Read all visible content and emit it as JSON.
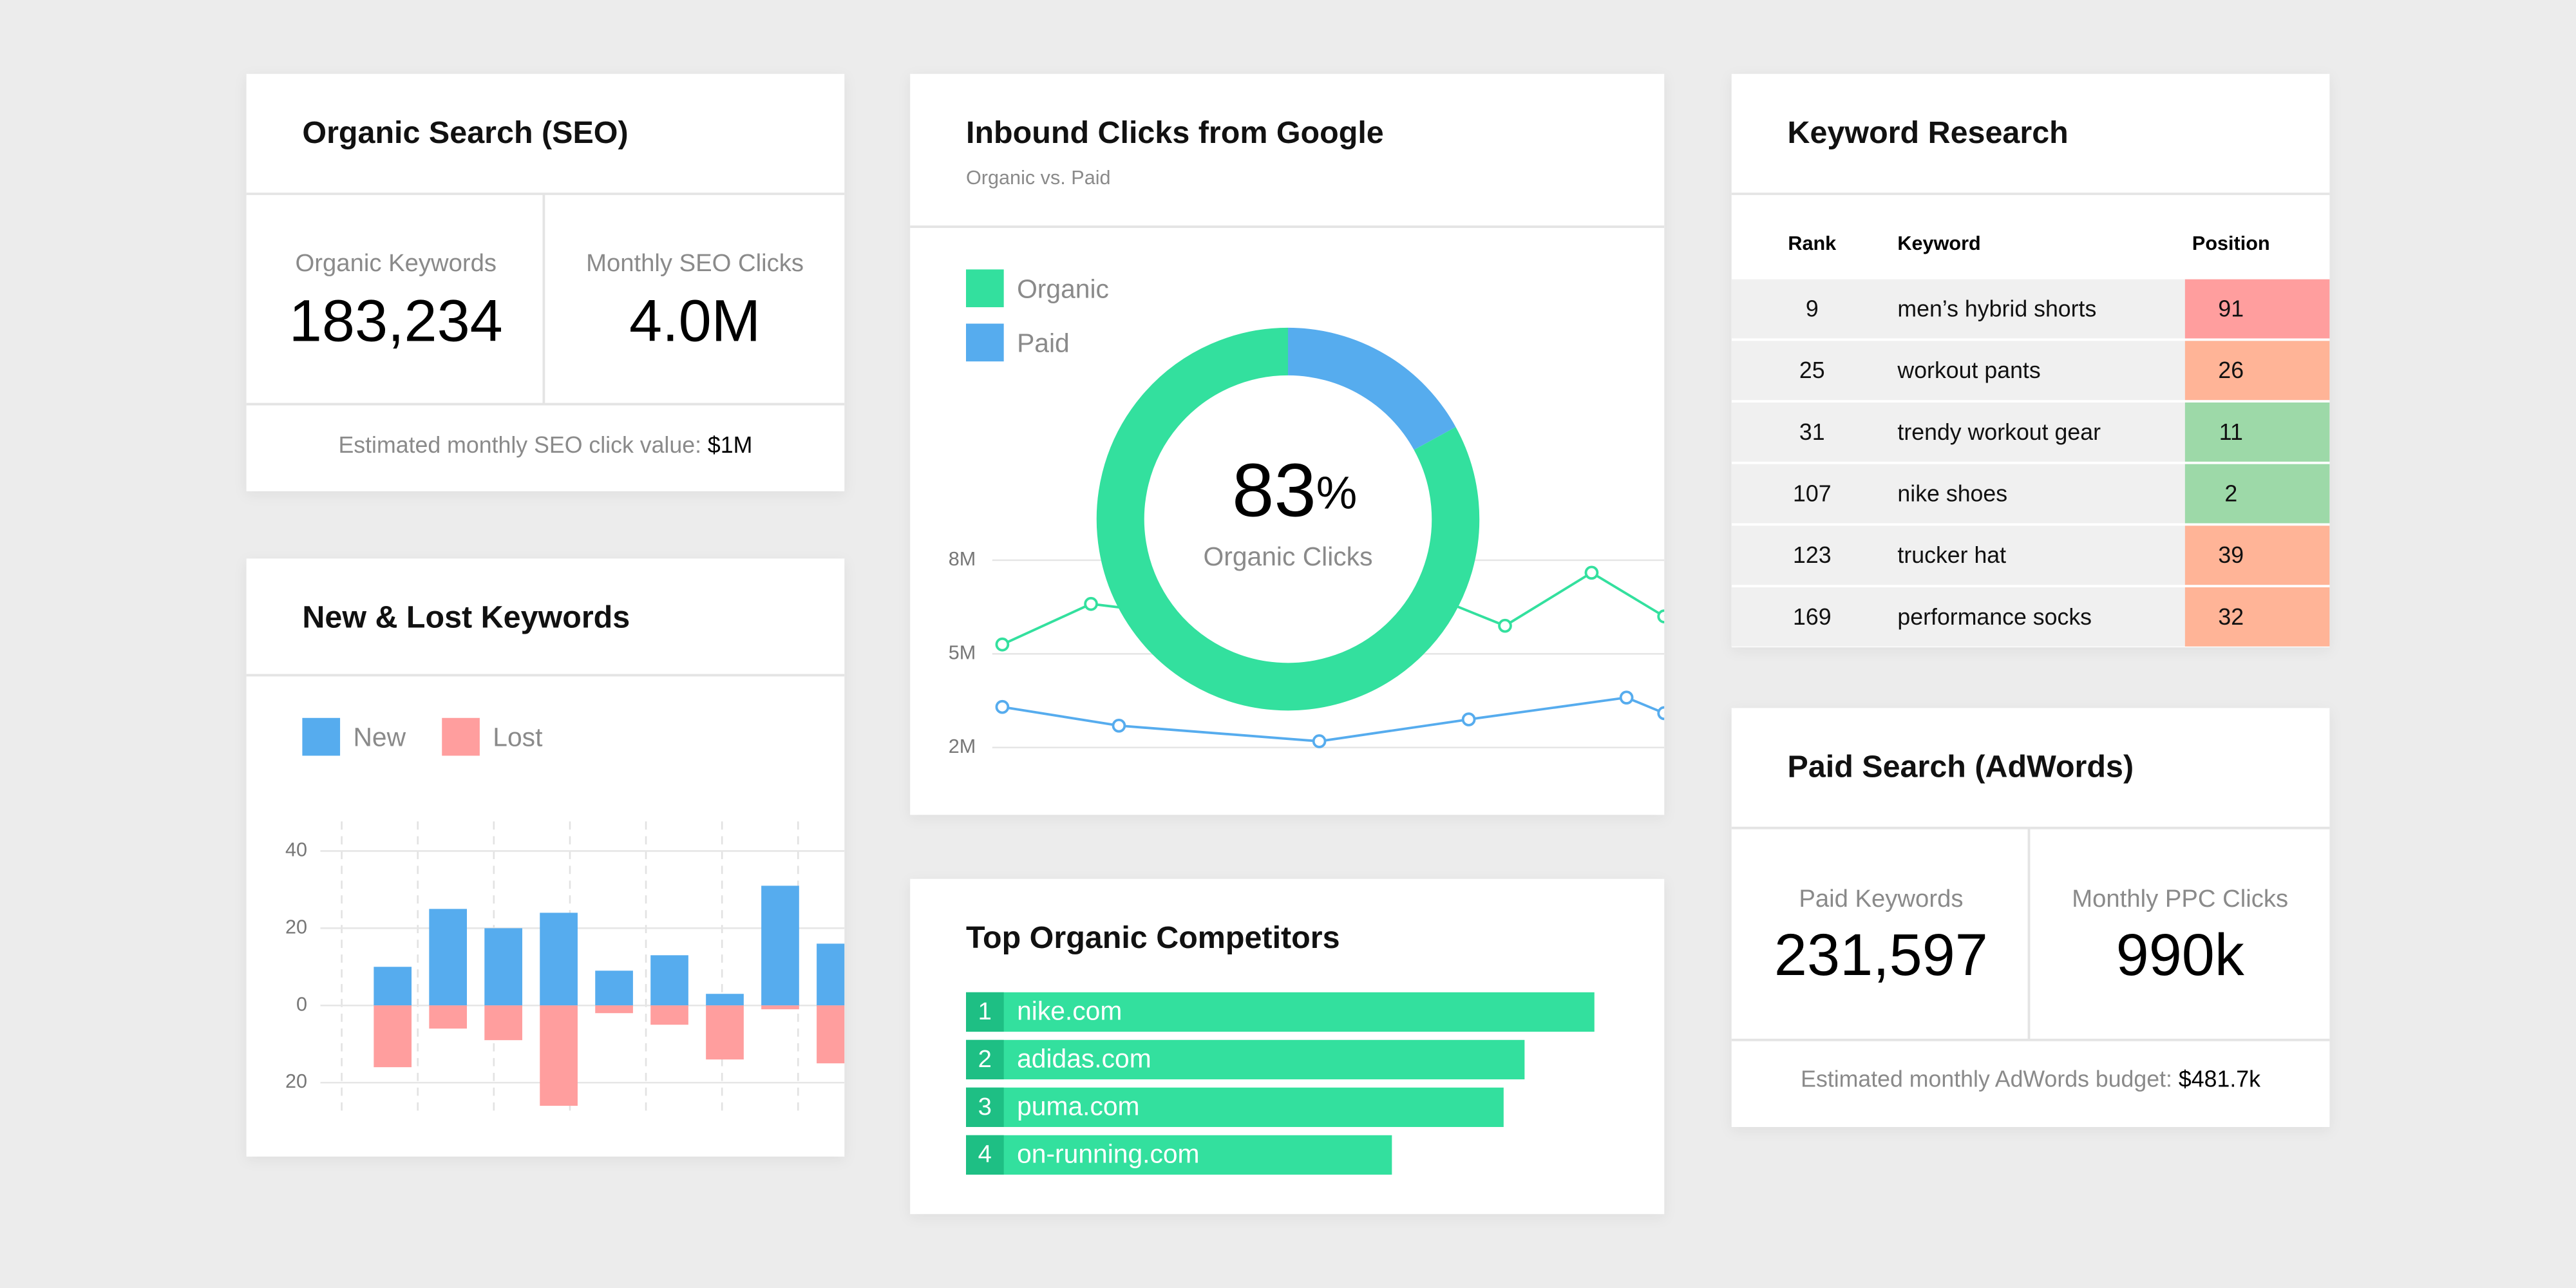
{
  "seo": {
    "title": "Organic Search (SEO)",
    "metrics": [
      {
        "label": "Organic Keywords",
        "value": "183,234"
      },
      {
        "label": "Monthly SEO Clicks",
        "value": "4.0M"
      }
    ],
    "footer_label": "Estimated monthly SEO click value:",
    "footer_value": "$1M"
  },
  "adwords": {
    "title": "Paid Search (AdWords)",
    "metrics": [
      {
        "label": "Paid Keywords",
        "value": "231,597"
      },
      {
        "label": "Monthly PPC Clicks",
        "value": "990k"
      }
    ],
    "footer_label": "Estimated monthly AdWords budget:",
    "footer_value": "$481.7k"
  },
  "keywords": {
    "title": "Keyword Research",
    "columns": [
      "Rank",
      "Keyword",
      "Position"
    ],
    "rows": [
      [
        9,
        "men’s hybrid shorts",
        91
      ],
      [
        25,
        "workout pants",
        26
      ],
      [
        31,
        "trendy workout gear",
        11
      ],
      [
        107,
        "nike shoes",
        2
      ],
      [
        123,
        "trucker hat",
        39
      ],
      [
        169,
        "performance socks",
        32
      ]
    ],
    "position_colors": [
      "#ff9e9e",
      "#ffb497",
      "#9dd9a8",
      "#9dd9a8",
      "#ffb497",
      "#ffb497"
    ]
  },
  "chart_data": [
    {
      "type": "bar",
      "title": "New & Lost Keywords",
      "categories": [
        null,
        null,
        null,
        null,
        null,
        null,
        null,
        null,
        null
      ],
      "series": [
        {
          "name": "New",
          "color": "#56acee",
          "values": [
            10,
            25,
            20,
            24,
            9,
            13,
            3,
            31,
            16
          ]
        },
        {
          "name": "Lost",
          "color": "#ff9e9e",
          "values": [
            -16,
            -6,
            -9,
            -26,
            -2,
            -5,
            -14,
            -1,
            -15
          ]
        }
      ],
      "ylim": [
        -28,
        44
      ],
      "yticks": [
        40,
        20,
        0,
        {
          "value": -20,
          "label": "20"
        }
      ],
      "grid": true
    },
    {
      "type": "donut",
      "title": "Inbound Clicks from Google",
      "subtitle": "Organic vs. Paid",
      "categories": [
        "Organic",
        "Paid"
      ],
      "values": [
        83,
        17
      ],
      "colors": [
        "#33e09e",
        "#56acee"
      ],
      "value_labels": [
        "83%",
        null
      ],
      "center_text": "Organic Clicks"
    },
    {
      "type": "line",
      "xlim": [
        0,
        100
      ],
      "ylim": [
        0,
        12000000
      ],
      "yticks": [
        {
          "value": 8000000,
          "label": "8M"
        },
        {
          "value": 5000000,
          "label": "5M"
        },
        {
          "value": 2000000,
          "label": "2M"
        }
      ],
      "grid": true,
      "series": [
        {
          "color": "#33e09e",
          "x": [
            5.2,
            17.9,
            40,
            65,
            77.2,
            89.6,
            100
          ],
          "values": [
            5300000,
            6600000,
            6000000,
            7000000,
            5900000,
            7600000,
            6200000
          ]
        },
        {
          "color": "#56acee",
          "x": [
            5.2,
            21.9,
            50.6,
            72,
            94.6,
            100
          ],
          "values": [
            3300000,
            2700000,
            2200000,
            2900000,
            3600000,
            3100000
          ]
        }
      ]
    },
    {
      "type": "hbar",
      "title": "Top Organic Competitors",
      "categories": [
        "nike.com",
        "adidas.com",
        "puma.com",
        "on-running.com"
      ],
      "ranks": [
        1,
        2,
        3,
        4
      ],
      "values": [
        90,
        80,
        77,
        61
      ],
      "xlim": [
        0,
        100
      ],
      "color": "#33e09e",
      "rank_color": "#1ebf84"
    }
  ]
}
